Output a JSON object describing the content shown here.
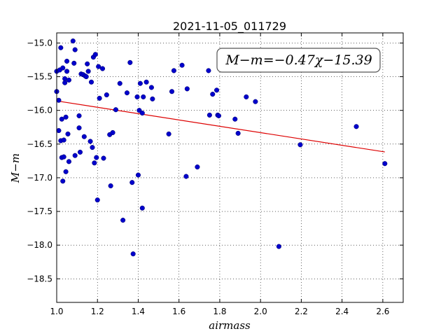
{
  "chart_data": {
    "type": "scatter",
    "title": "2021-11-05_011729",
    "xlabel": "airmass",
    "ylabel": "M−m",
    "xlim": [
      1.0,
      2.7
    ],
    "ylim": [
      -18.85,
      -14.85
    ],
    "x_ticks": [
      1.0,
      1.2,
      1.4,
      1.6,
      1.8,
      2.0,
      2.2,
      2.4,
      2.6
    ],
    "x_tick_labels": [
      "1.0",
      "1.2",
      "1.4",
      "1.6",
      "1.8",
      "2.0",
      "2.2",
      "2.4",
      "2.6"
    ],
    "y_ticks": [
      -15.0,
      -15.5,
      -16.0,
      -16.5,
      -17.0,
      -17.5,
      -18.0,
      -18.5
    ],
    "y_tick_labels": [
      "−15.0",
      "−15.5",
      "−16.0",
      "−16.5",
      "−17.0",
      "−17.5",
      "−18.0",
      "−18.5"
    ],
    "grid": true,
    "annotation": "M−m=−0.47χ−15.39",
    "colors": {
      "points": "#0000cc",
      "fit_line": "#dd0000"
    },
    "fit": {
      "slope": -0.47,
      "intercept": -15.39,
      "x_range": [
        1.0,
        2.61
      ]
    },
    "points": [
      [
        1.0,
        -15.72
      ],
      [
        1.0,
        -15.42
      ],
      [
        1.01,
        -15.85
      ],
      [
        1.01,
        -16.3
      ],
      [
        1.015,
        -15.4
      ],
      [
        1.02,
        -15.07
      ],
      [
        1.02,
        -16.45
      ],
      [
        1.025,
        -16.13
      ],
      [
        1.025,
        -16.7
      ],
      [
        1.03,
        -15.37
      ],
      [
        1.03,
        -17.05
      ],
      [
        1.035,
        -16.44
      ],
      [
        1.035,
        -16.69
      ],
      [
        1.04,
        -15.53
      ],
      [
        1.04,
        -15.59
      ],
      [
        1.045,
        -16.1
      ],
      [
        1.045,
        -16.91
      ],
      [
        1.05,
        -15.27
      ],
      [
        1.05,
        -15.42
      ],
      [
        1.055,
        -16.35
      ],
      [
        1.06,
        -16.76
      ],
      [
        1.06,
        -15.55
      ],
      [
        1.08,
        -14.97
      ],
      [
        1.085,
        -15.3
      ],
      [
        1.09,
        -15.1
      ],
      [
        1.09,
        -16.67
      ],
      [
        1.11,
        -16.08
      ],
      [
        1.11,
        -16.26
      ],
      [
        1.115,
        -16.62
      ],
      [
        1.12,
        -15.46
      ],
      [
        1.13,
        -15.47
      ],
      [
        1.135,
        -16.39
      ],
      [
        1.14,
        -15.49
      ],
      [
        1.145,
        -15.5
      ],
      [
        1.15,
        -15.31
      ],
      [
        1.155,
        -15.42
      ],
      [
        1.165,
        -16.46
      ],
      [
        1.17,
        -15.58
      ],
      [
        1.175,
        -16.55
      ],
      [
        1.18,
        -15.21
      ],
      [
        1.185,
        -16.78
      ],
      [
        1.19,
        -15.17
      ],
      [
        1.195,
        -16.7
      ],
      [
        1.2,
        -17.33
      ],
      [
        1.205,
        -15.35
      ],
      [
        1.21,
        -15.82
      ],
      [
        1.225,
        -15.38
      ],
      [
        1.23,
        -16.71
      ],
      [
        1.245,
        -15.77
      ],
      [
        1.26,
        -16.36
      ],
      [
        1.265,
        -17.12
      ],
      [
        1.275,
        -16.33
      ],
      [
        1.29,
        -15.99
      ],
      [
        1.31,
        -15.6
      ],
      [
        1.325,
        -17.63
      ],
      [
        1.345,
        -15.74
      ],
      [
        1.36,
        -15.29
      ],
      [
        1.37,
        -17.07
      ],
      [
        1.375,
        -18.13
      ],
      [
        1.395,
        -15.8
      ],
      [
        1.4,
        -16.96
      ],
      [
        1.405,
        -16.0
      ],
      [
        1.41,
        -15.6
      ],
      [
        1.42,
        -16.04
      ],
      [
        1.42,
        -17.45
      ],
      [
        1.425,
        -15.8
      ],
      [
        1.44,
        -15.58
      ],
      [
        1.465,
        -15.66
      ],
      [
        1.47,
        -15.83
      ],
      [
        1.55,
        -16.35
      ],
      [
        1.565,
        -15.72
      ],
      [
        1.575,
        -15.41
      ],
      [
        1.615,
        -15.33
      ],
      [
        1.635,
        -16.98
      ],
      [
        1.64,
        -15.68
      ],
      [
        1.69,
        -16.84
      ],
      [
        1.745,
        -15.41
      ],
      [
        1.75,
        -16.07
      ],
      [
        1.765,
        -15.76
      ],
      [
        1.785,
        -15.7
      ],
      [
        1.79,
        -16.07
      ],
      [
        1.795,
        -16.08
      ],
      [
        1.875,
        -16.13
      ],
      [
        1.89,
        -16.34
      ],
      [
        1.93,
        -15.8
      ],
      [
        1.975,
        -15.87
      ],
      [
        2.09,
        -18.02
      ],
      [
        2.195,
        -16.51
      ],
      [
        2.47,
        -16.24
      ],
      [
        2.61,
        -16.79
      ]
    ]
  }
}
